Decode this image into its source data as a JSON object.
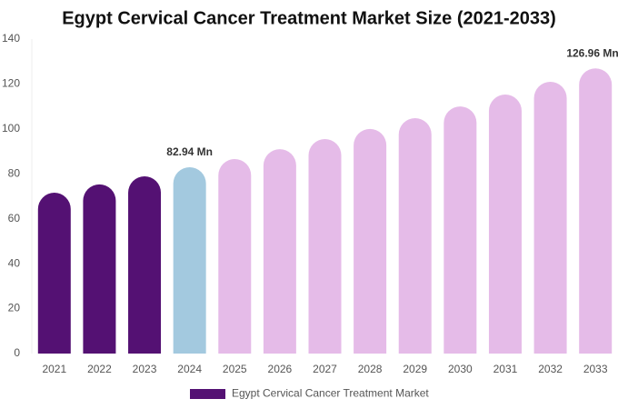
{
  "chart_data": {
    "type": "bar",
    "title": "Egypt Cervical Cancer Treatment Market Size (2021-2033)",
    "categories": [
      "2021",
      "2022",
      "2023",
      "2024",
      "2025",
      "2026",
      "2027",
      "2028",
      "2029",
      "2030",
      "2031",
      "2032",
      "2033"
    ],
    "series": [
      {
        "name": "Egypt Cervical Cancer Treatment Market",
        "color": "#541173",
        "colors": [
          "#541173",
          "#541173",
          "#541173",
          "#a3c9df",
          "#e5bbe8",
          "#e5bbe8",
          "#e5bbe8",
          "#e5bbe8",
          "#e5bbe8",
          "#e5bbe8",
          "#e5bbe8",
          "#e5bbe8",
          "#e5bbe8"
        ],
        "values": [
          71.6,
          75.3,
          78.9,
          82.94,
          86.6,
          91,
          95.5,
          100,
          104.8,
          110,
          115.3,
          121,
          126.96
        ],
        "value_labels": [
          null,
          null,
          null,
          "82.94 Mn",
          null,
          null,
          null,
          null,
          null,
          null,
          null,
          null,
          "126.96 Mn"
        ]
      }
    ],
    "ylim": [
      0,
      140
    ],
    "yticks": [
      0,
      20,
      40,
      60,
      80,
      100,
      120,
      140
    ],
    "grid": false
  }
}
